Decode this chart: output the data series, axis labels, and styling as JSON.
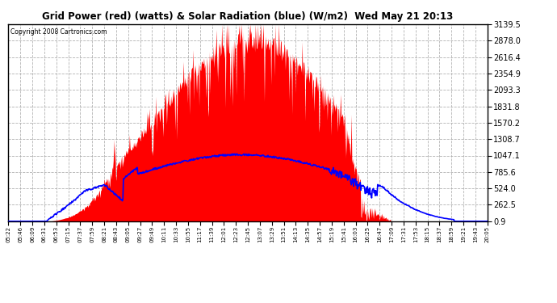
{
  "title": "Grid Power (red) (watts) & Solar Radiation (blue) (W/m2)  Wed May 21 20:13",
  "copyright": "Copyright 2008 Cartronics.com",
  "background_color": "#ffffff",
  "plot_bg_color": "#ffffff",
  "grid_color": "#aaaaaa",
  "y_ticks": [
    0.9,
    262.5,
    524.0,
    785.6,
    1047.1,
    1308.7,
    1570.2,
    1831.8,
    2093.3,
    2354.9,
    2616.4,
    2878.0,
    3139.5
  ],
  "ylim": [
    0.9,
    3139.5
  ],
  "red_color": "#ff0000",
  "blue_color": "#0000ff",
  "x_labels": [
    "05:22",
    "05:46",
    "06:09",
    "06:31",
    "06:53",
    "07:15",
    "07:37",
    "07:59",
    "08:21",
    "08:43",
    "09:05",
    "09:27",
    "09:49",
    "10:11",
    "10:33",
    "10:55",
    "11:17",
    "11:39",
    "12:01",
    "12:23",
    "12:45",
    "13:07",
    "13:29",
    "13:51",
    "14:13",
    "14:35",
    "14:57",
    "15:19",
    "15:41",
    "16:03",
    "16:25",
    "16:47",
    "17:09",
    "17:31",
    "17:53",
    "18:15",
    "18:37",
    "18:59",
    "19:21",
    "19:43",
    "20:05"
  ],
  "num_points": 800
}
